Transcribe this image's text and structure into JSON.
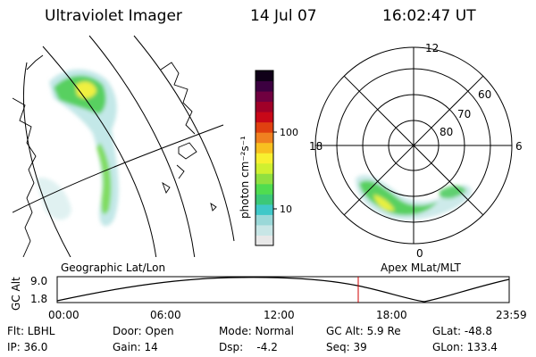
{
  "header": {
    "title": "Ultraviolet Imager",
    "date": "14 Jul 07",
    "time": "16:02:47 UT"
  },
  "colorbar": {
    "unit_label": "photon cm⁻²s⁻¹",
    "tick_100": "100",
    "tick_10": "10",
    "colors": [
      "#e8e8e8",
      "#c8e6e6",
      "#9ad8d8",
      "#40c8c8",
      "#3cc878",
      "#50dc50",
      "#90e040",
      "#d0f030",
      "#f8f030",
      "#f8c020",
      "#f08020",
      "#e04010",
      "#c80818",
      "#a00028",
      "#700040",
      "#3c0040",
      "#100018"
    ]
  },
  "geo_map": {
    "label": "Geographic Lat/Lon"
  },
  "polar_plot": {
    "label": "Apex MLat/MLT",
    "mlt_labels": {
      "top": "12",
      "left": "18",
      "right": "6",
      "bottom": "0"
    },
    "lat_labels": [
      "60",
      "70",
      "80"
    ]
  },
  "altitude_chart": {
    "ylabel": "GC Alt",
    "ytick_top": "9.0",
    "ytick_bottom": "1.8",
    "xticks": [
      "00:00",
      "06:00",
      "12:00",
      "18:00",
      "23:59"
    ],
    "current_time_marker": "16:02:47"
  },
  "info": {
    "filter_label": "Flt: LBHL",
    "ip_label": "IP: 36.0",
    "door_label": "Door: Open",
    "gain_label": "Gain: 14",
    "mode_label": "Mode: Normal",
    "dsp_label": "Dsp:    -4.2",
    "gcalt_label": "GC Alt: 5.9 Re",
    "seq_label": "Seq: 39",
    "glat_label": "GLat: -48.8",
    "glon_label": "GLon: 133.4"
  }
}
